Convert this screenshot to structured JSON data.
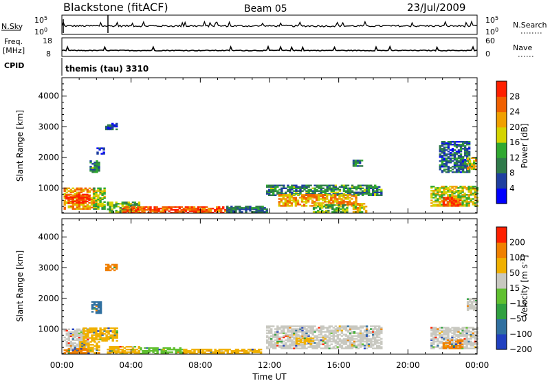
{
  "header": {
    "site": "Blackstone (fitACF)",
    "beam": "Beam 05",
    "date": "23/Jul/2009"
  },
  "top_panels": {
    "nsky_label": "N.Sky",
    "nsky_ticks": [
      "10^5",
      "10^0"
    ],
    "nsearch_label": "N.Search",
    "nsearch_ticks": [
      "10^5",
      "10^0"
    ],
    "freq_label_1": "Freq.",
    "freq_label_2": "[MHz]",
    "freq_ticks": [
      "18",
      "8"
    ],
    "nave_label": "Nave",
    "nave_ticks": [
      "60",
      "0"
    ],
    "cpid_label": "CPID",
    "cpid_text": "themis (tau) 3310"
  },
  "chart_data": [
    {
      "type": "heatmap",
      "name": "power-panel",
      "ylabel": "Slant Range [km]",
      "y_ticks": [
        "1000",
        "2000",
        "3000",
        "4000"
      ],
      "y_tick_values": [
        1000,
        2000,
        3000,
        4000
      ],
      "ylim": [
        180,
        4600
      ],
      "xlim_hours": [
        0,
        24
      ],
      "colorbar": {
        "label": "Power [dB]",
        "tick_labels": [
          "4",
          "8",
          "12",
          "16",
          "20",
          "24",
          "28"
        ],
        "tick_values": [
          4,
          8,
          12,
          16,
          20,
          24,
          28
        ],
        "range": [
          0,
          32
        ],
        "colors": [
          "#0000ff",
          "#1f3fa0",
          "#2f7a4a",
          "#30a830",
          "#d4d400",
          "#f0a000",
          "#f06000",
          "#ff2000"
        ]
      },
      "regions": [
        {
          "t0": 0.1,
          "t1": 1.8,
          "r0": 300,
          "r1": 1000,
          "level": 0.7
        },
        {
          "t0": 0.2,
          "t1": 1.6,
          "r0": 500,
          "r1": 800,
          "level": 0.95
        },
        {
          "t0": 1.8,
          "t1": 2.5,
          "r0": 300,
          "r1": 1000,
          "level": 0.5
        },
        {
          "t0": 1.6,
          "t1": 2.2,
          "r0": 1500,
          "r1": 1900,
          "level": 0.35
        },
        {
          "t0": 2.0,
          "t1": 2.4,
          "r0": 2100,
          "r1": 2300,
          "level": 0.25
        },
        {
          "t0": 2.5,
          "t1": 3.2,
          "r0": 2900,
          "r1": 3100,
          "level": 0.2
        },
        {
          "t0": 2.6,
          "t1": 4.5,
          "r0": 200,
          "r1": 550,
          "level": 0.45
        },
        {
          "t0": 3.5,
          "t1": 9.5,
          "r0": 180,
          "r1": 380,
          "level": 0.85
        },
        {
          "t0": 9.5,
          "t1": 11.8,
          "r0": 200,
          "r1": 400,
          "level": 0.3
        },
        {
          "t0": 11.8,
          "t1": 18.5,
          "r0": 750,
          "r1": 1100,
          "level": 0.35
        },
        {
          "t0": 12.5,
          "t1": 17.0,
          "r0": 400,
          "r1": 800,
          "level": 0.7
        },
        {
          "t0": 14.5,
          "t1": 16.5,
          "r0": 200,
          "r1": 450,
          "level": 0.45
        },
        {
          "t0": 16.8,
          "t1": 17.6,
          "r0": 200,
          "r1": 500,
          "level": 0.6
        },
        {
          "t0": 16.8,
          "t1": 17.3,
          "r0": 1700,
          "r1": 1900,
          "level": 0.3
        },
        {
          "t0": 21.3,
          "t1": 24,
          "r0": 400,
          "r1": 1050,
          "level": 0.55
        },
        {
          "t0": 22.0,
          "t1": 23.0,
          "r0": 400,
          "r1": 700,
          "level": 0.9
        },
        {
          "t0": 21.8,
          "t1": 23.5,
          "r0": 1500,
          "r1": 2500,
          "level": 0.25
        },
        {
          "t0": 23.4,
          "t1": 24,
          "r0": 1600,
          "r1": 2000,
          "level": 0.6
        }
      ]
    },
    {
      "type": "heatmap",
      "name": "velocity-panel",
      "ylabel": "Slant Range [km]",
      "xlabel": "Time UT",
      "x_ticks": [
        "00:00",
        "04:00",
        "08:00",
        "12:00",
        "16:00",
        "20:00",
        "00:00"
      ],
      "x_tick_hours": [
        0,
        4,
        8,
        12,
        16,
        20,
        24
      ],
      "y_ticks": [
        "1000",
        "2000",
        "3000",
        "4000"
      ],
      "y_tick_values": [
        1000,
        2000,
        3000,
        4000
      ],
      "ylim": [
        180,
        4600
      ],
      "xlim_hours": [
        0,
        24
      ],
      "colorbar": {
        "label": "Velocity [m s^-1]",
        "tick_labels": [
          "200",
          "100",
          "50",
          "15",
          "−15",
          "−50",
          "−100",
          "−200"
        ],
        "colors": [
          "#2040c0",
          "#3070a0",
          "#30a040",
          "#60c030",
          "#c8c8c0",
          "#f0b000",
          "#f08000",
          "#ff2000"
        ]
      },
      "regions": [
        {
          "t0": 0.1,
          "t1": 1.5,
          "r0": 300,
          "r1": 1000,
          "color": "#c8c8c0"
        },
        {
          "t0": 1.2,
          "t1": 3.2,
          "r0": 600,
          "r1": 1050,
          "color": "#f0b000"
        },
        {
          "t0": 1.0,
          "t1": 2.2,
          "r0": 200,
          "r1": 600,
          "color": "#f0b000"
        },
        {
          "t0": 0.1,
          "t1": 1.5,
          "r0": 200,
          "r1": 350,
          "color": "#f08000"
        },
        {
          "t0": 2.6,
          "t1": 4.5,
          "r0": 180,
          "r1": 450,
          "color": "#f0b000"
        },
        {
          "t0": 4.5,
          "t1": 7.0,
          "r0": 180,
          "r1": 380,
          "color": "#60c030"
        },
        {
          "t0": 7.0,
          "t1": 11.5,
          "r0": 180,
          "r1": 350,
          "color": "#f0b000"
        },
        {
          "t0": 1.7,
          "t1": 2.2,
          "r0": 1500,
          "r1": 1900,
          "color": "#3070a0"
        },
        {
          "t0": 2.5,
          "t1": 3.2,
          "r0": 2900,
          "r1": 3100,
          "color": "#f08000"
        },
        {
          "t0": 11.8,
          "t1": 18.5,
          "r0": 350,
          "r1": 1100,
          "color": "#c8c8c0"
        },
        {
          "t0": 13.5,
          "t1": 14.5,
          "r0": 500,
          "r1": 700,
          "color": "#f0b000"
        },
        {
          "t0": 21.3,
          "t1": 24,
          "r0": 350,
          "r1": 1050,
          "color": "#c8c8c0"
        },
        {
          "t0": 22.0,
          "t1": 23.2,
          "r0": 350,
          "r1": 650,
          "color": "#f08000"
        },
        {
          "t0": 23.4,
          "t1": 24,
          "r0": 1600,
          "r1": 2000,
          "color": "#c8c8c0"
        }
      ]
    }
  ]
}
